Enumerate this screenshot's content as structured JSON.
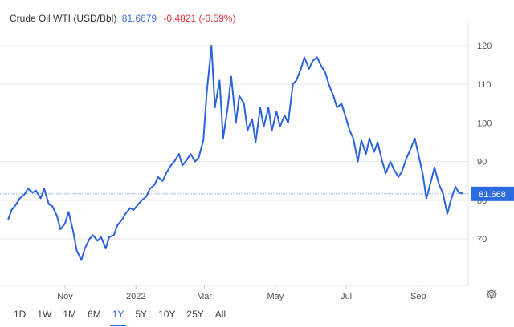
{
  "header": {
    "title": "Crude Oil WTI (USD/Bbl)",
    "price": "81.6679",
    "change": "-0.4821 (-0.59%)"
  },
  "range_buttons": [
    {
      "label": "1D",
      "active": false
    },
    {
      "label": "1W",
      "active": false
    },
    {
      "label": "1M",
      "active": false
    },
    {
      "label": "6M",
      "active": false
    },
    {
      "label": "1Y",
      "active": true
    },
    {
      "label": "5Y",
      "active": false
    },
    {
      "label": "10Y",
      "active": false
    },
    {
      "label": "25Y",
      "active": false
    },
    {
      "label": "All",
      "active": false
    }
  ],
  "icons": {
    "settings": "gear-icon"
  },
  "colors": {
    "line": "#2a62e0",
    "last_label_bg": "#2d6be0",
    "change_negative": "#e0323c",
    "price": "#3a6fd8"
  },
  "chart_data": {
    "type": "line",
    "title": "Crude Oil WTI (USD/Bbl)",
    "xlabel": "",
    "ylabel": "",
    "ylim": [
      58,
      126
    ],
    "y_ticks": [
      70,
      80,
      90,
      100,
      110,
      120
    ],
    "x_ticks": [
      "Nov",
      "2022",
      "Mar",
      "May",
      "Jul",
      "Sep"
    ],
    "x_tick_dates": [
      "2021-11-01",
      "2022-01-01",
      "2022-03-01",
      "2022-05-01",
      "2022-07-01",
      "2022-09-01"
    ],
    "grid": true,
    "last_value_label": "81.668",
    "last_value": 81.668,
    "series": [
      {
        "name": "",
        "x": [
          "2021-09-13",
          "2021-09-16",
          "2021-09-20",
          "2021-09-23",
          "2021-09-27",
          "2021-09-30",
          "2021-10-04",
          "2021-10-07",
          "2021-10-11",
          "2021-10-14",
          "2021-10-18",
          "2021-10-21",
          "2021-10-25",
          "2021-10-28",
          "2021-11-01",
          "2021-11-04",
          "2021-11-08",
          "2021-11-11",
          "2021-11-15",
          "2021-11-18",
          "2021-11-22",
          "2021-11-25",
          "2021-11-29",
          "2021-12-02",
          "2021-12-06",
          "2021-12-09",
          "2021-12-13",
          "2021-12-16",
          "2021-12-20",
          "2021-12-23",
          "2021-12-27",
          "2021-12-30",
          "2022-01-03",
          "2022-01-06",
          "2022-01-10",
          "2022-01-13",
          "2022-01-17",
          "2022-01-20",
          "2022-01-24",
          "2022-01-27",
          "2022-01-31",
          "2022-02-03",
          "2022-02-07",
          "2022-02-10",
          "2022-02-14",
          "2022-02-17",
          "2022-02-21",
          "2022-02-24",
          "2022-02-28",
          "2022-03-03",
          "2022-03-07",
          "2022-03-10",
          "2022-03-14",
          "2022-03-17",
          "2022-03-21",
          "2022-03-24",
          "2022-03-28",
          "2022-03-31",
          "2022-04-04",
          "2022-04-07",
          "2022-04-11",
          "2022-04-14",
          "2022-04-18",
          "2022-04-21",
          "2022-04-25",
          "2022-04-28",
          "2022-05-02",
          "2022-05-05",
          "2022-05-09",
          "2022-05-12",
          "2022-05-16",
          "2022-05-19",
          "2022-05-23",
          "2022-05-26",
          "2022-05-30",
          "2022-06-02",
          "2022-06-06",
          "2022-06-09",
          "2022-06-13",
          "2022-06-16",
          "2022-06-20",
          "2022-06-23",
          "2022-06-27",
          "2022-06-30",
          "2022-07-04",
          "2022-07-07",
          "2022-07-11",
          "2022-07-14",
          "2022-07-18",
          "2022-07-21",
          "2022-07-25",
          "2022-07-28",
          "2022-08-01",
          "2022-08-04",
          "2022-08-08",
          "2022-08-11",
          "2022-08-15",
          "2022-08-18",
          "2022-08-22",
          "2022-08-25",
          "2022-08-29",
          "2022-09-01",
          "2022-09-05",
          "2022-09-08",
          "2022-09-12",
          "2022-09-15",
          "2022-09-19",
          "2022-09-22",
          "2022-09-26",
          "2022-09-29",
          "2022-10-03",
          "2022-10-06",
          "2022-10-10"
        ],
        "y": [
          75,
          77.5,
          79,
          80.5,
          81.5,
          83,
          82,
          82.5,
          80.5,
          83,
          79,
          78.5,
          76,
          72.5,
          74,
          77,
          72,
          67,
          64.5,
          67.5,
          70,
          71,
          69.5,
          70.5,
          67.5,
          70.5,
          71,
          73.5,
          75,
          76.5,
          78,
          77.5,
          79,
          80,
          81,
          83,
          84,
          86,
          85,
          87,
          89,
          90,
          92,
          89,
          90.5,
          92,
          90,
          91,
          95.5,
          108,
          120,
          104,
          111,
          96,
          104,
          112,
          100,
          107,
          105,
          98,
          101,
          95,
          104,
          99,
          104,
          98,
          103,
          99,
          102,
          100,
          110,
          111,
          114,
          117,
          114,
          116,
          117,
          115,
          113,
          110,
          107,
          104,
          105,
          102,
          98,
          96,
          90,
          95.5,
          92,
          96,
          92.5,
          95,
          90,
          87,
          90,
          88,
          86,
          87.5,
          91,
          93,
          96,
          92,
          86.5,
          80.5,
          85,
          88.5,
          84,
          82,
          76.5,
          80,
          83.5,
          82,
          81.668
        ]
      }
    ]
  }
}
